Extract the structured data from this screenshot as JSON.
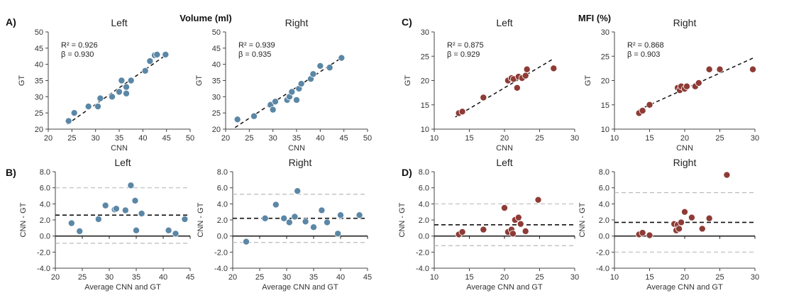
{
  "figure": {
    "labels": {
      "A": "A)",
      "B": "B)",
      "C": "C)",
      "D": "D)"
    },
    "section_titles": {
      "volume": "Volume (ml)",
      "mfi": "MFI (%)"
    }
  },
  "colors": {
    "volume_points": "#5b87a6",
    "mfi_points": "#8e3b36",
    "axis": "#444444",
    "loa": "#bbbbbb"
  },
  "chart_data": [
    {
      "id": "vol-left-scatter",
      "type": "scatter",
      "panel": "A",
      "title": "Left",
      "xlabel": "CNN",
      "ylabel": "GT",
      "xlim": [
        20,
        50
      ],
      "ylim": [
        20,
        50
      ],
      "xticks": [
        "20",
        "25",
        "30",
        "35",
        "40",
        "45",
        "50"
      ],
      "yticks": [
        "20",
        "25",
        "30",
        "35",
        "40",
        "45",
        "50"
      ],
      "annotations": [
        "R² = 0.926",
        "β = 0.930"
      ],
      "trend": {
        "x": [
          24,
          45
        ],
        "y": [
          21.5,
          43
        ]
      },
      "points": [
        [
          24.3,
          22.5
        ],
        [
          25.5,
          25
        ],
        [
          28.5,
          27
        ],
        [
          30.5,
          27
        ],
        [
          31,
          29.5
        ],
        [
          33.5,
          30
        ],
        [
          35,
          31.5
        ],
        [
          35.5,
          35
        ],
        [
          36.5,
          33
        ],
        [
          36.5,
          31
        ],
        [
          37.5,
          35
        ],
        [
          40.5,
          38
        ],
        [
          41.5,
          41
        ],
        [
          42.5,
          42.8
        ],
        [
          43,
          43
        ],
        [
          44.8,
          43
        ]
      ]
    },
    {
      "id": "vol-right-scatter",
      "type": "scatter",
      "panel": "A",
      "title": "Right",
      "xlabel": "CNN",
      "ylabel": "GT",
      "xlim": [
        20,
        50
      ],
      "ylim": [
        20,
        50
      ],
      "xticks": [
        "20",
        "25",
        "30",
        "35",
        "40",
        "45",
        "50"
      ],
      "yticks": [
        "20",
        "25",
        "30",
        "35",
        "40",
        "45",
        "50"
      ],
      "annotations": [
        "R² = 0.939",
        "β = 0.935"
      ],
      "trend": {
        "x": [
          22,
          45
        ],
        "y": [
          20.5,
          42.5
        ]
      },
      "points": [
        [
          22.5,
          23
        ],
        [
          26,
          24
        ],
        [
          29.5,
          27.5
        ],
        [
          30,
          26
        ],
        [
          30.5,
          28.5
        ],
        [
          33,
          29
        ],
        [
          33.5,
          30
        ],
        [
          34,
          31.5
        ],
        [
          35,
          29
        ],
        [
          35.5,
          32.5
        ],
        [
          36,
          34
        ],
        [
          38,
          35.5
        ],
        [
          38.5,
          37
        ],
        [
          40,
          39.5
        ],
        [
          42,
          39
        ],
        [
          44.5,
          42
        ]
      ]
    },
    {
      "id": "mfi-left-scatter",
      "type": "scatter",
      "panel": "C",
      "title": "Left",
      "xlabel": "CNN",
      "ylabel": "GT",
      "xlim": [
        10,
        30
      ],
      "ylim": [
        10,
        30
      ],
      "xticks": [
        "10",
        "15",
        "20",
        "25",
        "30"
      ],
      "yticks": [
        "10",
        "15",
        "20",
        "25",
        "30"
      ],
      "annotations": [
        "R² = 0.875",
        "β = 0.929"
      ],
      "trend": {
        "x": [
          13,
          27
        ],
        "y": [
          12.5,
          24.5
        ]
      },
      "points": [
        [
          13.5,
          13.3
        ],
        [
          14,
          13.6
        ],
        [
          17,
          16.5
        ],
        [
          20.5,
          20
        ],
        [
          21,
          20.5
        ],
        [
          21.3,
          20.3
        ],
        [
          21.8,
          18.5
        ],
        [
          22,
          20.8
        ],
        [
          22.5,
          20.5
        ],
        [
          23,
          21
        ],
        [
          23.2,
          22.3
        ],
        [
          27,
          22.5
        ]
      ]
    },
    {
      "id": "mfi-right-scatter",
      "type": "scatter",
      "panel": "C",
      "title": "Right",
      "xlabel": "CNN",
      "ylabel": "GT",
      "xlim": [
        10,
        30
      ],
      "ylim": [
        10,
        30
      ],
      "xticks": [
        "10",
        "15",
        "20",
        "25",
        "30"
      ],
      "yticks": [
        "10",
        "15",
        "20",
        "25",
        "30"
      ],
      "annotations": [
        "R² = 0.868",
        "β = 0.903"
      ],
      "trend": {
        "x": [
          13.5,
          30
        ],
        "y": [
          14,
          24.8
        ]
      },
      "points": [
        [
          13.5,
          13.3
        ],
        [
          14,
          13.8
        ],
        [
          15,
          15
        ],
        [
          19,
          18.5
        ],
        [
          19.3,
          18
        ],
        [
          19.5,
          18.8
        ],
        [
          20,
          18.3
        ],
        [
          20.3,
          18.8
        ],
        [
          21.5,
          18.8
        ],
        [
          22,
          19.5
        ],
        [
          23.5,
          22.3
        ],
        [
          25,
          22.3
        ],
        [
          29.7,
          22.3
        ]
      ]
    },
    {
      "id": "vol-left-ba",
      "type": "scatter",
      "panel": "B",
      "title": "Left",
      "xlabel": "Average CNN and GT",
      "ylabel": "CNN - GT",
      "xlim": [
        20,
        45
      ],
      "ylim": [
        -4,
        8
      ],
      "xticks": [
        "20",
        "25",
        "30",
        "35",
        "40",
        "45"
      ],
      "yticks": [
        "8.0",
        "6.0",
        "4.0",
        "2.0",
        "0.0",
        "-2.0",
        "-4.0"
      ],
      "mean": 2.6,
      "loa": [
        6.0,
        -0.9
      ],
      "points": [
        [
          23,
          1.6
        ],
        [
          24.5,
          0.6
        ],
        [
          28,
          2.1
        ],
        [
          29.3,
          3.8
        ],
        [
          31,
          3.3
        ],
        [
          31.3,
          3.4
        ],
        [
          33,
          3.2
        ],
        [
          34,
          6.3
        ],
        [
          34.8,
          4.4
        ],
        [
          35,
          0.7
        ],
        [
          36,
          2.8
        ],
        [
          41,
          0.7
        ],
        [
          42.3,
          0.3
        ],
        [
          44,
          2.1
        ]
      ]
    },
    {
      "id": "vol-right-ba",
      "type": "scatter",
      "panel": "B",
      "title": "Right",
      "xlabel": "Average CNN and GT",
      "ylabel": "CNN - GT",
      "xlim": [
        20,
        45
      ],
      "ylim": [
        -4,
        8
      ],
      "xticks": [
        "20",
        "25",
        "30",
        "35",
        "40",
        "45"
      ],
      "yticks": [
        "8.0",
        "6.0",
        "4.0",
        "2.0",
        "0.0",
        "-2.0",
        "-4.0"
      ],
      "mean": 2.2,
      "loa": [
        5.2,
        -0.8
      ],
      "points": [
        [
          22.5,
          -0.7
        ],
        [
          26,
          2.2
        ],
        [
          28,
          3.9
        ],
        [
          29.5,
          2.2
        ],
        [
          30.5,
          1.7
        ],
        [
          31.5,
          2.4
        ],
        [
          32,
          5.6
        ],
        [
          33.5,
          1.8
        ],
        [
          35,
          1.1
        ],
        [
          36.5,
          3.2
        ],
        [
          37.5,
          1.7
        ],
        [
          39.5,
          0.3
        ],
        [
          40,
          2.6
        ],
        [
          43.5,
          2.6
        ]
      ]
    },
    {
      "id": "mfi-left-ba",
      "type": "scatter",
      "panel": "D",
      "title": "Left",
      "xlabel": "Average CNN and GT",
      "ylabel": "CNN - GT",
      "xlim": [
        10,
        30
      ],
      "ylim": [
        -4,
        8
      ],
      "xticks": [
        "10",
        "15",
        "20",
        "25",
        "30"
      ],
      "yticks": [
        "8.0",
        "6.0",
        "4.0",
        "2.0",
        "0.0",
        "-2.0",
        "-4.0"
      ],
      "mean": 1.4,
      "loa": [
        4.0,
        -1.2
      ],
      "points": [
        [
          13.5,
          0.2
        ],
        [
          14,
          0.5
        ],
        [
          17,
          0.8
        ],
        [
          20,
          3.5
        ],
        [
          20.5,
          0.5
        ],
        [
          21,
          0.8
        ],
        [
          21.2,
          0.3
        ],
        [
          21.5,
          2.0
        ],
        [
          22,
          2.3
        ],
        [
          22.3,
          1.5
        ],
        [
          23,
          0.6
        ],
        [
          24.8,
          4.5
        ]
      ]
    },
    {
      "id": "mfi-right-ba",
      "type": "scatter",
      "panel": "D",
      "title": "Right",
      "xlabel": "Average CNN and GT",
      "ylabel": "CNN - GT",
      "xlim": [
        10,
        30
      ],
      "ylim": [
        -4,
        8
      ],
      "xticks": [
        "10",
        "15",
        "20",
        "25",
        "30"
      ],
      "yticks": [
        "8.0",
        "6.0",
        "4.0",
        "2.0",
        "0.0",
        "-2.0",
        "-4.0"
      ],
      "mean": 1.7,
      "loa": [
        5.4,
        -2.0
      ],
      "points": [
        [
          13.5,
          0.2
        ],
        [
          14,
          0.4
        ],
        [
          15,
          0.1
        ],
        [
          18.5,
          1.5
        ],
        [
          18.8,
          0.7
        ],
        [
          19,
          1.4
        ],
        [
          19.2,
          0.9
        ],
        [
          19.5,
          1.7
        ],
        [
          20,
          3.0
        ],
        [
          21,
          2.3
        ],
        [
          22.5,
          0.9
        ],
        [
          23.5,
          2.2
        ],
        [
          26,
          7.6
        ]
      ]
    }
  ]
}
